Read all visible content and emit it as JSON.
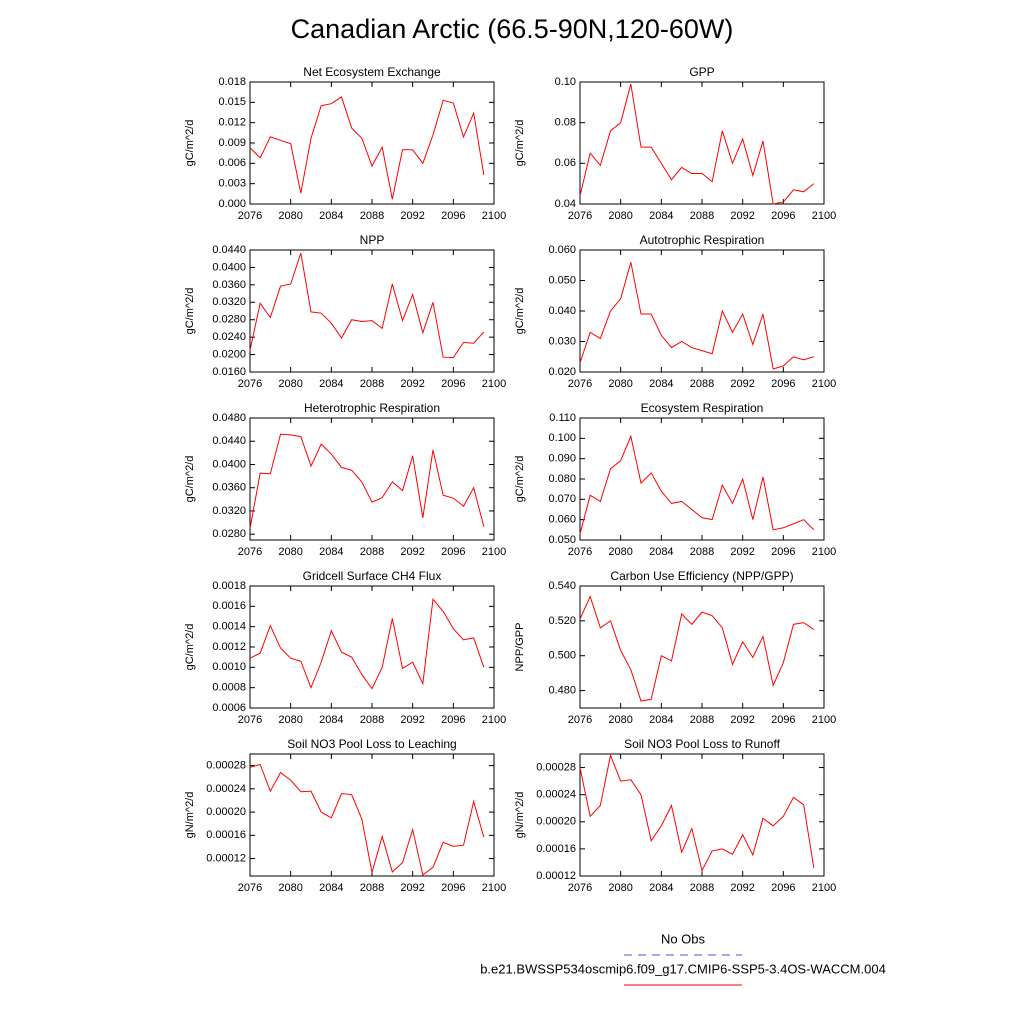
{
  "title": "Canadian Arctic (66.5-90N,120-60W)",
  "legend": [
    {
      "label": "No Obs",
      "color": "#5555cc",
      "dashed": true
    },
    {
      "label": "b.e21.BWSSP534oscmip6.f09_g17.CMIP6-SSP5-3.4OS-WACCM.004",
      "color": "#ff0000",
      "dashed": false
    }
  ],
  "chart_data": [
    {
      "type": "line",
      "title": "Net Ecosystem Exchange",
      "ylabel": "gC/m^2/d",
      "color": "#ff0000",
      "x": [
        2076,
        2077,
        2078,
        2079,
        2080,
        2081,
        2082,
        2083,
        2084,
        2085,
        2086,
        2087,
        2088,
        2089,
        2090,
        2091,
        2092,
        2093,
        2094,
        2095,
        2096,
        2097,
        2098,
        2099
      ],
      "values": [
        0.0083,
        0.0068,
        0.0099,
        0.0094,
        0.0089,
        0.0016,
        0.0097,
        0.0145,
        0.0148,
        0.0158,
        0.0112,
        0.0097,
        0.0056,
        0.0084,
        0.0007,
        0.008,
        0.008,
        0.006,
        0.0102,
        0.0153,
        0.0149,
        0.0099,
        0.0134,
        0.0043
      ],
      "xlim": [
        2076,
        2100
      ],
      "xticks": [
        2076,
        2080,
        2084,
        2088,
        2092,
        2096,
        2100
      ],
      "ylim": [
        0,
        0.018
      ],
      "yticks": [
        {
          "value": 0,
          "label": "0.000"
        },
        0.003,
        0.006,
        0.009,
        0.012,
        0.015,
        0.018
      ]
    },
    {
      "type": "line",
      "title": "GPP",
      "ylabel": "gC/m^2/d",
      "color": "#ff0000",
      "x": [
        2076,
        2077,
        2078,
        2079,
        2080,
        2081,
        2082,
        2083,
        2084,
        2085,
        2086,
        2087,
        2088,
        2089,
        2090,
        2091,
        2092,
        2093,
        2094,
        2095,
        2096,
        2097,
        2098,
        2099
      ],
      "values": [
        0.044,
        0.065,
        0.059,
        0.076,
        0.08,
        0.099,
        0.068,
        0.068,
        0.06,
        0.052,
        0.058,
        0.055,
        0.055,
        0.051,
        0.076,
        0.06,
        0.072,
        0.054,
        0.071,
        0.04,
        0.041,
        0.047,
        0.046,
        0.05
      ],
      "xlim": [
        2076,
        2100
      ],
      "xticks": [
        2076,
        2080,
        2084,
        2088,
        2092,
        2096,
        2100
      ],
      "ylim": [
        0.04,
        0.1
      ],
      "yticks": [
        0.04,
        0.06,
        0.08,
        {
          "value": 0.1,
          "label": "0.10"
        }
      ]
    },
    {
      "type": "line",
      "title": "NPP",
      "ylabel": "gC/m^2/d",
      "color": "#ff0000",
      "x": [
        2076,
        2077,
        2078,
        2079,
        2080,
        2081,
        2082,
        2083,
        2084,
        2085,
        2086,
        2087,
        2088,
        2089,
        2090,
        2091,
        2092,
        2093,
        2094,
        2095,
        2096,
        2097,
        2098,
        2099
      ],
      "values": [
        0.021,
        0.0318,
        0.0285,
        0.0357,
        0.0362,
        0.0433,
        0.0298,
        0.0295,
        0.0272,
        0.0238,
        0.028,
        0.0276,
        0.0278,
        0.026,
        0.0362,
        0.0278,
        0.0338,
        0.025,
        0.032,
        0.0194,
        0.0193,
        0.0228,
        0.0226,
        0.0252
      ],
      "xlim": [
        2076,
        2100
      ],
      "xticks": [
        2076,
        2080,
        2084,
        2088,
        2092,
        2096,
        2100
      ],
      "ylim": [
        0.016,
        0.044
      ],
      "yticks": [
        {
          "value": 0.016,
          "label": "0.0160"
        },
        {
          "value": 0.02,
          "label": "0.0200"
        },
        {
          "value": 0.024,
          "label": "0.0240"
        },
        {
          "value": 0.028,
          "label": "0.0280"
        },
        {
          "value": 0.032,
          "label": "0.0320"
        },
        {
          "value": 0.036,
          "label": "0.0360"
        },
        {
          "value": 0.04,
          "label": "0.0400"
        },
        {
          "value": 0.044,
          "label": "0.0440"
        }
      ]
    },
    {
      "type": "line",
      "title": "Autotrophic Respiration",
      "ylabel": "gC/m^2/d",
      "color": "#ff0000",
      "x": [
        2076,
        2077,
        2078,
        2079,
        2080,
        2081,
        2082,
        2083,
        2084,
        2085,
        2086,
        2087,
        2088,
        2089,
        2090,
        2091,
        2092,
        2093,
        2094,
        2095,
        2096,
        2097,
        2098,
        2099
      ],
      "values": [
        0.023,
        0.033,
        0.031,
        0.04,
        0.044,
        0.056,
        0.039,
        0.039,
        0.032,
        0.028,
        0.03,
        0.028,
        0.027,
        0.026,
        0.04,
        0.033,
        0.039,
        0.029,
        0.039,
        0.021,
        0.022,
        0.025,
        0.024,
        0.025
      ],
      "xlim": [
        2076,
        2100
      ],
      "xticks": [
        2076,
        2080,
        2084,
        2088,
        2092,
        2096,
        2100
      ],
      "ylim": [
        0.02,
        0.06
      ],
      "yticks": [
        {
          "value": 0.02,
          "label": "0.020"
        },
        {
          "value": 0.03,
          "label": "0.030"
        },
        {
          "value": 0.04,
          "label": "0.040"
        },
        {
          "value": 0.05,
          "label": "0.050"
        },
        {
          "value": 0.06,
          "label": "0.060"
        }
      ]
    },
    {
      "type": "line",
      "title": "Heterotrophic Respiration",
      "ylabel": "gC/m^2/d",
      "color": "#ff0000",
      "x": [
        2076,
        2077,
        2078,
        2079,
        2080,
        2081,
        2082,
        2083,
        2084,
        2085,
        2086,
        2087,
        2088,
        2089,
        2090,
        2091,
        2092,
        2093,
        2094,
        2095,
        2096,
        2097,
        2098,
        2099
      ],
      "values": [
        0.029,
        0.0385,
        0.0384,
        0.0452,
        0.0451,
        0.0448,
        0.0397,
        0.0435,
        0.0418,
        0.0395,
        0.039,
        0.037,
        0.0335,
        0.0343,
        0.037,
        0.0355,
        0.0415,
        0.0308,
        0.0425,
        0.0347,
        0.0342,
        0.0328,
        0.036,
        0.0293
      ],
      "xlim": [
        2076,
        2100
      ],
      "xticks": [
        2076,
        2080,
        2084,
        2088,
        2092,
        2096,
        2100
      ],
      "ylim": [
        0.027,
        0.048
      ],
      "yticks": [
        {
          "value": 0.028,
          "label": "0.0280"
        },
        {
          "value": 0.032,
          "label": "0.0320"
        },
        {
          "value": 0.036,
          "label": "0.0360"
        },
        {
          "value": 0.04,
          "label": "0.0400"
        },
        {
          "value": 0.044,
          "label": "0.0440"
        },
        {
          "value": 0.048,
          "label": "0.0480"
        }
      ]
    },
    {
      "type": "line",
      "title": "Ecosystem Respiration",
      "ylabel": "gC/m^2/d",
      "color": "#ff0000",
      "x": [
        2076,
        2077,
        2078,
        2079,
        2080,
        2081,
        2082,
        2083,
        2084,
        2085,
        2086,
        2087,
        2088,
        2089,
        2090,
        2091,
        2092,
        2093,
        2094,
        2095,
        2096,
        2097,
        2098,
        2099
      ],
      "values": [
        0.053,
        0.072,
        0.069,
        0.085,
        0.089,
        0.101,
        0.078,
        0.083,
        0.074,
        0.068,
        0.069,
        0.065,
        0.061,
        0.06,
        0.077,
        0.068,
        0.08,
        0.06,
        0.081,
        0.055,
        0.056,
        0.058,
        0.06,
        0.055
      ],
      "xlim": [
        2076,
        2100
      ],
      "xticks": [
        2076,
        2080,
        2084,
        2088,
        2092,
        2096,
        2100
      ],
      "ylim": [
        0.05,
        0.11
      ],
      "yticks": [
        {
          "value": 0.05,
          "label": "0.050"
        },
        {
          "value": 0.06,
          "label": "0.060"
        },
        {
          "value": 0.07,
          "label": "0.070"
        },
        {
          "value": 0.08,
          "label": "0.080"
        },
        {
          "value": 0.09,
          "label": "0.090"
        },
        {
          "value": 0.1,
          "label": "0.100"
        },
        {
          "value": 0.11,
          "label": "0.110"
        }
      ]
    },
    {
      "type": "line",
      "title": "Gridcell Surface CH4 Flux",
      "ylabel": "gC/m^2/d",
      "color": "#ff0000",
      "x": [
        2076,
        2077,
        2078,
        2079,
        2080,
        2081,
        2082,
        2083,
        2084,
        2085,
        2086,
        2087,
        2088,
        2089,
        2090,
        2091,
        2092,
        2093,
        2094,
        2095,
        2096,
        2097,
        2098,
        2099
      ],
      "values": [
        0.00109,
        0.00114,
        0.00141,
        0.00119,
        0.00109,
        0.00106,
        0.0008,
        0.00105,
        0.00136,
        0.00115,
        0.0011,
        0.00093,
        0.00079,
        0.001,
        0.00148,
        0.00099,
        0.00105,
        0.00084,
        0.00167,
        0.00155,
        0.00138,
        0.00127,
        0.00129,
        0.001
      ],
      "xlim": [
        2076,
        2100
      ],
      "xticks": [
        2076,
        2080,
        2084,
        2088,
        2092,
        2096,
        2100
      ],
      "ylim": [
        0.0006,
        0.0018
      ],
      "yticks": [
        0.0006,
        0.0008,
        {
          "value": 0.001,
          "label": "0.0010"
        },
        0.0012,
        0.0014,
        0.0016,
        0.0018
      ]
    },
    {
      "type": "line",
      "title": "Carbon Use Efficiency (NPP/GPP)",
      "ylabel": "NPP/GPP",
      "color": "#ff0000",
      "x": [
        2076,
        2077,
        2078,
        2079,
        2080,
        2081,
        2082,
        2083,
        2084,
        2085,
        2086,
        2087,
        2088,
        2089,
        2090,
        2091,
        2092,
        2093,
        2094,
        2095,
        2096,
        2097,
        2098,
        2099
      ],
      "values": [
        0.521,
        0.534,
        0.516,
        0.52,
        0.503,
        0.492,
        0.474,
        0.475,
        0.5,
        0.497,
        0.524,
        0.518,
        0.525,
        0.523,
        0.516,
        0.495,
        0.508,
        0.499,
        0.511,
        0.483,
        0.496,
        0.518,
        0.519,
        0.515
      ],
      "xlim": [
        2076,
        2100
      ],
      "xticks": [
        2076,
        2080,
        2084,
        2088,
        2092,
        2096,
        2100
      ],
      "ylim": [
        0.47,
        0.54
      ],
      "yticks": [
        {
          "value": 0.48,
          "label": "0.480"
        },
        {
          "value": 0.5,
          "label": "0.500"
        },
        {
          "value": 0.52,
          "label": "0.520"
        },
        {
          "value": 0.54,
          "label": "0.540"
        }
      ]
    },
    {
      "type": "line",
      "title": "Soil NO3 Pool Loss to Leaching",
      "ylabel": "gN/m^2/d",
      "color": "#ff0000",
      "x": [
        2076,
        2077,
        2078,
        2079,
        2080,
        2081,
        2082,
        2083,
        2084,
        2085,
        2086,
        2087,
        2088,
        2089,
        2090,
        2091,
        2092,
        2093,
        2094,
        2095,
        2096,
        2097,
        2098,
        2099
      ],
      "values": [
        0.000277,
        0.000282,
        0.000236,
        0.000268,
        0.000255,
        0.000235,
        0.000236,
        0.0002,
        0.00019,
        0.000232,
        0.00023,
        0.000188,
        9.6e-05,
        0.000158,
        9.7e-05,
        0.000113,
        0.00017,
        9.2e-05,
        0.000105,
        0.000148,
        0.000141,
        0.000143,
        0.000218,
        0.000157
      ],
      "xlim": [
        2076,
        2100
      ],
      "xticks": [
        2076,
        2080,
        2084,
        2088,
        2092,
        2096,
        2100
      ],
      "ylim": [
        9e-05,
        0.0003
      ],
      "yticks": [
        0.00012,
        0.00016,
        {
          "value": 0.0002,
          "label": "0.00020"
        },
        0.00024,
        0.00028
      ]
    },
    {
      "type": "line",
      "title": "Soil NO3 Pool Loss to Runoff",
      "ylabel": "gN/m^2/d",
      "color": "#ff0000",
      "x": [
        2076,
        2077,
        2078,
        2079,
        2080,
        2081,
        2082,
        2083,
        2084,
        2085,
        2086,
        2087,
        2088,
        2089,
        2090,
        2091,
        2092,
        2093,
        2094,
        2095,
        2096,
        2097,
        2098,
        2099
      ],
      "values": [
        0.00028,
        0.000208,
        0.000224,
        0.000298,
        0.00026,
        0.000262,
        0.00024,
        0.000172,
        0.000194,
        0.000224,
        0.000155,
        0.00019,
        0.000128,
        0.000157,
        0.00016,
        0.000152,
        0.000181,
        0.000151,
        0.000205,
        0.000194,
        0.000208,
        0.000236,
        0.000225,
        0.000132
      ],
      "xlim": [
        2076,
        2100
      ],
      "xticks": [
        2076,
        2080,
        2084,
        2088,
        2092,
        2096,
        2100
      ],
      "ylim": [
        0.00012,
        0.0003
      ],
      "yticks": [
        0.00012,
        0.00016,
        {
          "value": 0.0002,
          "label": "0.00020"
        },
        0.00024,
        0.00028
      ]
    }
  ]
}
